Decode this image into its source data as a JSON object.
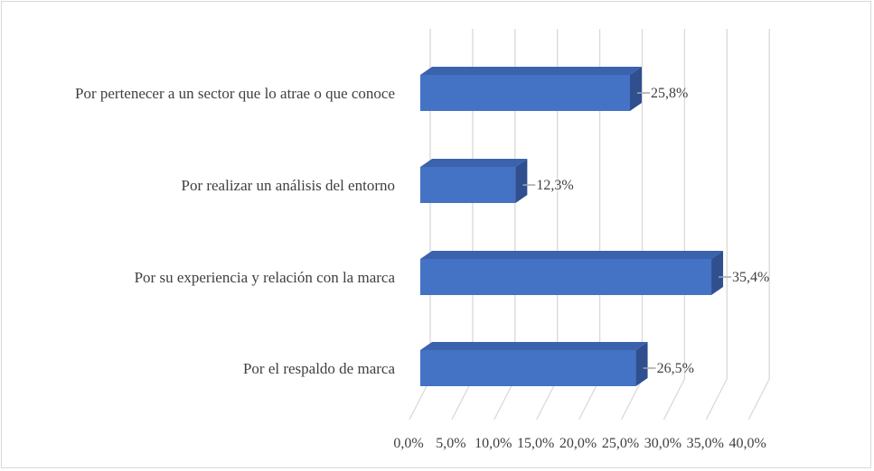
{
  "chart_data": {
    "type": "bar",
    "orientation": "horizontal",
    "style": "3d",
    "categories": [
      "Por pertenecer a un sector que lo atrae o que conoce",
      "Por realizar un análisis del entorno",
      "Por su experiencia y relación con la marca",
      "Por el respaldo de marca"
    ],
    "values": [
      25.8,
      12.3,
      35.4,
      26.5
    ],
    "value_labels": [
      "25,8%",
      "12,3%",
      "35,4%",
      "26,5%"
    ],
    "x_ticks": [
      "0,0%",
      "5,0%",
      "10,0%",
      "15,0%",
      "20,0%",
      "25,0%",
      "30,0%",
      "35,0%",
      "40,0%"
    ],
    "xlim": [
      0,
      40
    ],
    "grid": true,
    "legend": "none",
    "colors": {
      "bar_front": "#4472c4",
      "bar_top": "#3a62ad",
      "bar_side": "#2f4f8f",
      "grid": "#d9d9d9",
      "text": "#404040"
    }
  }
}
